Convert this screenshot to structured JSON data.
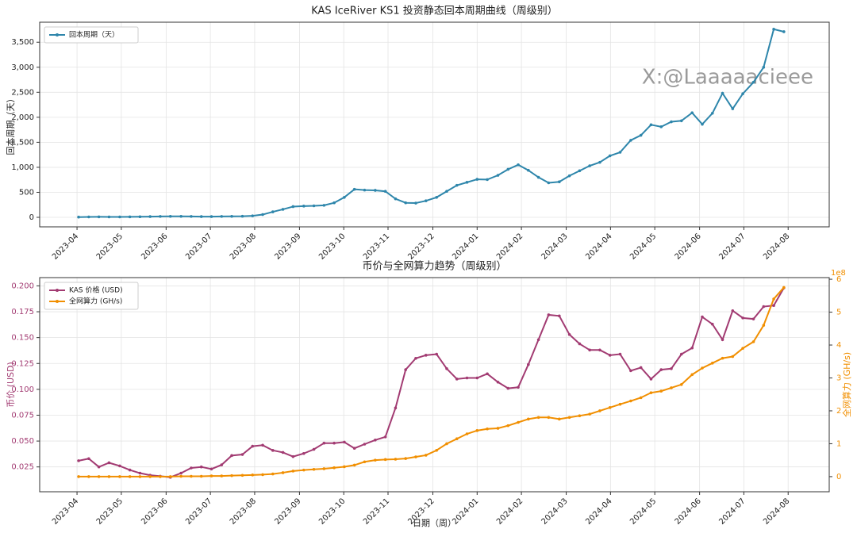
{
  "chart_data": [
    {
      "type": "line",
      "title": "KAS IceRiver KS1 投资静态回本周期曲线（周级别）",
      "y_label": "回本周期（天）",
      "watermark": "X:@Laaaaacieee",
      "legend": "upper left",
      "grid": true,
      "x": [
        2023.253,
        2023.272,
        2023.291,
        2023.31,
        2023.33,
        2023.349,
        2023.368,
        2023.387,
        2023.406,
        2023.425,
        2023.445,
        2023.464,
        2023.483,
        2023.502,
        2023.521,
        2023.54,
        2023.56,
        2023.579,
        2023.598,
        2023.617,
        2023.636,
        2023.655,
        2023.675,
        2023.694,
        2023.713,
        2023.732,
        2023.751,
        2023.77,
        2023.789,
        2023.809,
        2023.828,
        2023.847,
        2023.866,
        2023.885,
        2023.904,
        2023.924,
        2023.943,
        2023.962,
        2023.981,
        2024.0,
        2024.019,
        2024.039,
        2024.058,
        2024.077,
        2024.096,
        2024.115,
        2024.134,
        2024.154,
        2024.173,
        2024.192,
        2024.211,
        2024.23,
        2024.249,
        2024.268,
        2024.288,
        2024.307,
        2024.326,
        2024.345,
        2024.364,
        2024.383,
        2024.403,
        2024.422,
        2024.441,
        2024.46,
        2024.479,
        2024.498,
        2024.518,
        2024.537,
        2024.556,
        2024.575
      ],
      "series": [
        {
          "name": "回本周期（天）",
          "color": "#2e86ab",
          "values": [
            5,
            8,
            10,
            8,
            8,
            10,
            12,
            15,
            18,
            20,
            20,
            18,
            15,
            15,
            18,
            20,
            22,
            30,
            55,
            110,
            160,
            215,
            225,
            230,
            240,
            290,
            400,
            560,
            545,
            540,
            520,
            370,
            290,
            285,
            330,
            400,
            520,
            640,
            700,
            760,
            755,
            840,
            960,
            1050,
            940,
            800,
            690,
            710,
            830,
            930,
            1030,
            1100,
            1230,
            1300,
            1540,
            1640,
            1850,
            1810,
            1910,
            1930,
            2090,
            1860,
            2080,
            2480,
            2170,
            2470,
            2700,
            3000,
            3760,
            3710
          ]
        }
      ],
      "xlim": [
        2023.18,
        2024.66
      ],
      "xticks": [
        {
          "value": 2023.25,
          "label": "2023-04"
        },
        {
          "value": 2023.333,
          "label": "2023-05"
        },
        {
          "value": 2023.417,
          "label": "2023-06"
        },
        {
          "value": 2023.5,
          "label": "2023-07"
        },
        {
          "value": 2023.583,
          "label": "2023-08"
        },
        {
          "value": 2023.667,
          "label": "2023-09"
        },
        {
          "value": 2023.75,
          "label": "2023-10"
        },
        {
          "value": 2023.833,
          "label": "2023-11"
        },
        {
          "value": 2023.917,
          "label": "2023-12"
        },
        {
          "value": 2024.0,
          "label": "2024-01"
        },
        {
          "value": 2024.083,
          "label": "2024-02"
        },
        {
          "value": 2024.167,
          "label": "2024-03"
        },
        {
          "value": 2024.25,
          "label": "2024-04"
        },
        {
          "value": 2024.333,
          "label": "2024-05"
        },
        {
          "value": 2024.417,
          "label": "2024-06"
        },
        {
          "value": 2024.5,
          "label": "2024-07"
        },
        {
          "value": 2024.583,
          "label": "2024-08"
        }
      ],
      "ylim": [
        -190,
        3900
      ],
      "yticks": [
        0,
        500,
        {
          "value": 1000,
          "label": "1,000"
        },
        {
          "value": 1500,
          "label": "1,500"
        },
        {
          "value": 2000,
          "label": "2,000"
        },
        {
          "value": 2500,
          "label": "2,500"
        },
        {
          "value": 3000,
          "label": "3,000"
        },
        {
          "value": 3500,
          "label": "3,500"
        }
      ]
    },
    {
      "type": "line",
      "title": "币价与全网算力趋势（周级别）",
      "x_label": "日期（周）",
      "y_label": "币价 (USD)",
      "y2_label": "全网算力 (GH/s)",
      "y2_offset": "1e8",
      "legend": "upper left",
      "grid": true,
      "x": [
        2023.253,
        2023.272,
        2023.291,
        2023.31,
        2023.33,
        2023.349,
        2023.368,
        2023.387,
        2023.406,
        2023.425,
        2023.445,
        2023.464,
        2023.483,
        2023.502,
        2023.521,
        2023.54,
        2023.56,
        2023.579,
        2023.598,
        2023.617,
        2023.636,
        2023.655,
        2023.675,
        2023.694,
        2023.713,
        2023.732,
        2023.751,
        2023.77,
        2023.789,
        2023.809,
        2023.828,
        2023.847,
        2023.866,
        2023.885,
        2023.904,
        2023.924,
        2023.943,
        2023.962,
        2023.981,
        2024.0,
        2024.019,
        2024.039,
        2024.058,
        2024.077,
        2024.096,
        2024.115,
        2024.134,
        2024.154,
        2024.173,
        2024.192,
        2024.211,
        2024.23,
        2024.249,
        2024.268,
        2024.288,
        2024.307,
        2024.326,
        2024.345,
        2024.364,
        2024.383,
        2024.403,
        2024.422,
        2024.441,
        2024.46,
        2024.479,
        2024.498,
        2024.518,
        2024.537,
        2024.556,
        2024.575
      ],
      "series": [
        {
          "name": "KAS 价格 (USD)",
          "color": "#a23b72",
          "values": [
            0.031,
            0.033,
            0.025,
            0.029,
            0.026,
            0.022,
            0.019,
            0.017,
            0.016,
            0.015,
            0.019,
            0.024,
            0.025,
            0.023,
            0.027,
            0.036,
            0.037,
            0.045,
            0.046,
            0.041,
            0.039,
            0.035,
            0.038,
            0.042,
            0.048,
            0.048,
            0.049,
            0.043,
            0.047,
            0.051,
            0.054,
            0.082,
            0.119,
            0.13,
            0.133,
            0.134,
            0.12,
            0.11,
            0.111,
            0.111,
            0.115,
            0.107,
            0.101,
            0.102,
            0.124,
            0.148,
            0.172,
            0.171,
            0.153,
            0.144,
            0.138,
            0.138,
            0.133,
            0.134,
            0.118,
            0.121,
            0.11,
            0.119,
            0.12,
            0.134,
            0.14,
            0.17,
            0.163,
            0.148,
            0.176,
            0.169,
            0.168,
            0.18,
            0.181,
            0.198
          ]
        },
        {
          "name": "全网算力 (GH/s)",
          "color": "#f18f01",
          "axis": "y2",
          "values": [
            0,
            0,
            0,
            0,
            0,
            0,
            0,
            0,
            0,
            0,
            0.01,
            0.01,
            0.01,
            0.02,
            0.02,
            0.03,
            0.04,
            0.05,
            0.06,
            0.08,
            0.12,
            0.17,
            0.2,
            0.22,
            0.24,
            0.27,
            0.3,
            0.35,
            0.45,
            0.5,
            0.52,
            0.53,
            0.55,
            0.6,
            0.65,
            0.8,
            1.0,
            1.15,
            1.3,
            1.4,
            1.45,
            1.47,
            1.55,
            1.65,
            1.75,
            1.8,
            1.8,
            1.75,
            1.8,
            1.85,
            1.9,
            2.0,
            2.1,
            2.2,
            2.3,
            2.4,
            2.55,
            2.6,
            2.7,
            2.8,
            3.1,
            3.3,
            3.45,
            3.6,
            3.65,
            3.9,
            4.1,
            4.6,
            5.4,
            5.75
          ]
        }
      ],
      "xlim": [
        2023.18,
        2024.66
      ],
      "xticks": [
        {
          "value": 2023.25,
          "label": "2023-04"
        },
        {
          "value": 2023.333,
          "label": "2023-05"
        },
        {
          "value": 2023.417,
          "label": "2023-06"
        },
        {
          "value": 2023.5,
          "label": "2023-07"
        },
        {
          "value": 2023.583,
          "label": "2023-08"
        },
        {
          "value": 2023.667,
          "label": "2023-09"
        },
        {
          "value": 2023.75,
          "label": "2023-10"
        },
        {
          "value": 2023.833,
          "label": "2023-11"
        },
        {
          "value": 2023.917,
          "label": "2023-12"
        },
        {
          "value": 2024.0,
          "label": "2024-01"
        },
        {
          "value": 2024.083,
          "label": "2024-02"
        },
        {
          "value": 2024.167,
          "label": "2024-03"
        },
        {
          "value": 2024.25,
          "label": "2024-04"
        },
        {
          "value": 2024.333,
          "label": "2024-05"
        },
        {
          "value": 2024.417,
          "label": "2024-06"
        },
        {
          "value": 2024.5,
          "label": "2024-07"
        },
        {
          "value": 2024.583,
          "label": "2024-08"
        }
      ],
      "ylim": [
        0.001,
        0.208
      ],
      "yticks": [
        0.025,
        {
          "value": 0.05,
          "label": "0.050"
        },
        0.075,
        {
          "value": 0.1,
          "label": "0.100"
        },
        0.125,
        {
          "value": 0.15,
          "label": "0.150"
        },
        0.175,
        {
          "value": 0.2,
          "label": "0.200"
        }
      ],
      "y2lim": [
        -0.46,
        6.05
      ],
      "y2ticks": [
        0,
        1,
        2,
        3,
        4,
        5,
        6
      ]
    }
  ]
}
